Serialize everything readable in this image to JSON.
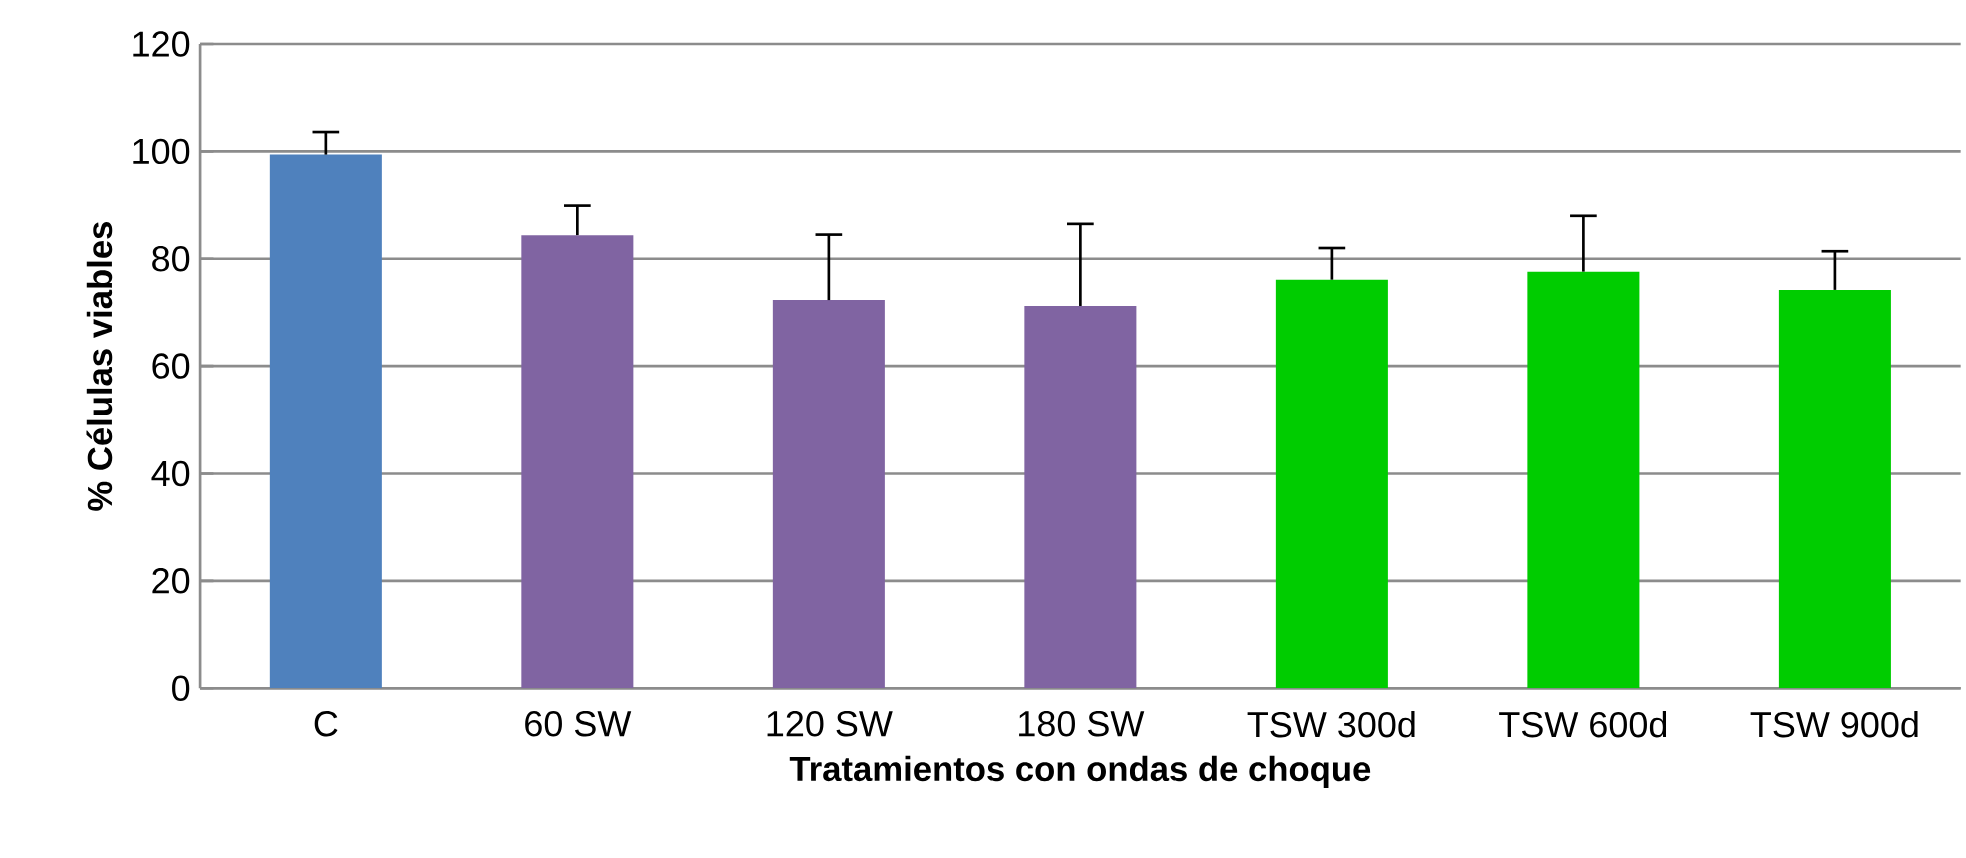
{
  "chart_data": {
    "type": "bar",
    "xlabel": "Tratamientos con ondas de choque",
    "ylabel": "% Células viables",
    "categories": [
      "C",
      "60 SW",
      "120 SW",
      "180 SW",
      "TSW 300d",
      "TSW 600d",
      "TSW 900d"
    ],
    "values": [
      99.4,
      84.4,
      72.3,
      71.2,
      76.1,
      77.6,
      74.2
    ],
    "colors": [
      "#4f81bd",
      "#8064a2",
      "#8064a2",
      "#8064a2",
      "#00cc00",
      "#00cc00",
      "#00cc00"
    ],
    "errors": [
      [
        99.4,
        103.6
      ],
      [
        84.4,
        89.9
      ],
      [
        72.3,
        84.5
      ],
      [
        71.2,
        86.5
      ],
      [
        76.1,
        82.0
      ],
      [
        77.6,
        88.0
      ],
      [
        74.2,
        81.4
      ]
    ],
    "ylim": [
      0,
      120
    ],
    "yticks": [
      0,
      20,
      40,
      60,
      80,
      100,
      120
    ],
    "grid": "y"
  }
}
